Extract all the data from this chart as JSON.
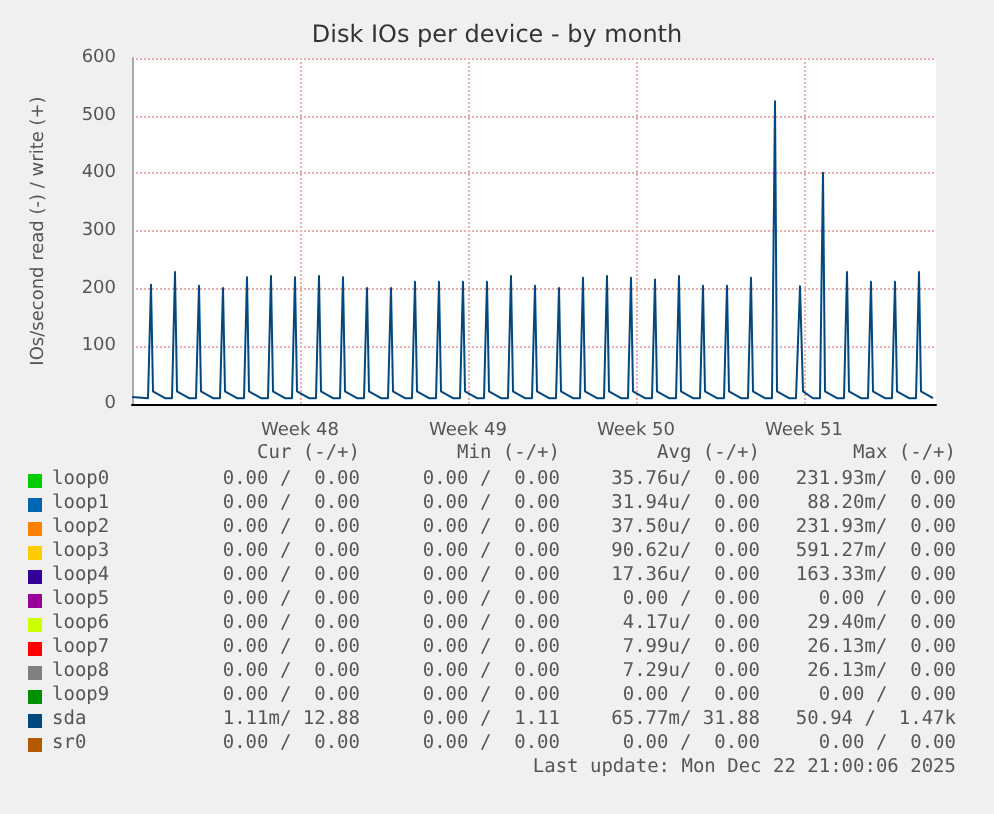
{
  "chart_data": {
    "type": "line",
    "title": "Disk IOs per device - by month",
    "ylabel": "IOs/second read (-) / write (+)",
    "xlim": [
      "2025-11-17T00:00",
      "2025-12-20T12:00"
    ],
    "xticks": [
      {
        "value": "2025-11-24",
        "label": "Week 48"
      },
      {
        "value": "2025-12-01",
        "label": "Week 49"
      },
      {
        "value": "2025-12-08",
        "label": "Week 50"
      },
      {
        "value": "2025-12-15",
        "label": "Week 51"
      }
    ],
    "ylim": [
      0,
      600
    ],
    "yticks": [
      0,
      100,
      200,
      300,
      400,
      500,
      600
    ],
    "grid": true,
    "legend": "bottom",
    "series": [
      {
        "name": "loop0",
        "color": "#00cc00"
      },
      {
        "name": "loop1",
        "color": "#0066b3"
      },
      {
        "name": "loop2",
        "color": "#ff8000"
      },
      {
        "name": "loop3",
        "color": "#ffcc00"
      },
      {
        "name": "loop4",
        "color": "#330099"
      },
      {
        "name": "loop5",
        "color": "#990099"
      },
      {
        "name": "loop6",
        "color": "#ccff00"
      },
      {
        "name": "loop7",
        "color": "#ff0000"
      },
      {
        "name": "loop8",
        "color": "#808080"
      },
      {
        "name": "loop9",
        "color": "#008f00"
      },
      {
        "name": "sda",
        "color": "#00487d",
        "x": [
          "2025-11-17T00:00",
          "2025-11-17T16:00",
          "2025-11-17T19:00",
          "2025-11-17T21:00",
          "2025-11-18T09:00",
          "2025-11-18T16:00",
          "2025-11-18T19:00",
          "2025-11-18T21:00",
          "2025-11-19T09:00",
          "2025-11-19T16:00",
          "2025-11-19T19:00",
          "2025-11-19T21:00",
          "2025-11-20T09:00",
          "2025-11-20T16:00",
          "2025-11-20T19:00",
          "2025-11-20T21:00",
          "2025-11-21T09:00",
          "2025-11-21T16:00",
          "2025-11-21T19:00",
          "2025-11-21T21:00",
          "2025-11-22T09:00",
          "2025-11-22T16:00",
          "2025-11-22T19:00",
          "2025-11-22T21:00",
          "2025-11-23T09:00",
          "2025-11-23T16:00",
          "2025-11-23T19:00",
          "2025-11-23T21:00",
          "2025-11-24T09:00",
          "2025-11-24T16:00",
          "2025-11-24T19:00",
          "2025-11-24T21:00",
          "2025-11-25T09:00",
          "2025-11-25T16:00",
          "2025-11-25T19:00",
          "2025-11-25T21:00",
          "2025-11-26T09:00",
          "2025-11-26T16:00",
          "2025-11-26T19:00",
          "2025-11-26T21:00",
          "2025-11-27T09:00",
          "2025-11-27T16:00",
          "2025-11-27T19:00",
          "2025-11-27T21:00",
          "2025-11-28T09:00",
          "2025-11-28T16:00",
          "2025-11-28T19:00",
          "2025-11-28T21:00",
          "2025-11-29T09:00",
          "2025-11-29T16:00",
          "2025-11-29T19:00",
          "2025-11-29T21:00",
          "2025-11-30T09:00",
          "2025-11-30T16:00",
          "2025-11-30T19:00",
          "2025-11-30T21:00",
          "2025-12-01T09:00",
          "2025-12-01T16:00",
          "2025-12-01T19:00",
          "2025-12-01T21:00",
          "2025-12-02T09:00",
          "2025-12-02T16:00",
          "2025-12-02T19:00",
          "2025-12-02T21:00",
          "2025-12-03T09:00",
          "2025-12-03T16:00",
          "2025-12-03T19:00",
          "2025-12-03T21:00",
          "2025-12-04T09:00",
          "2025-12-04T16:00",
          "2025-12-04T19:00",
          "2025-12-04T21:00",
          "2025-12-05T09:00",
          "2025-12-05T16:00",
          "2025-12-05T19:00",
          "2025-12-05T21:00",
          "2025-12-06T09:00",
          "2025-12-06T16:00",
          "2025-12-06T19:00",
          "2025-12-06T21:00",
          "2025-12-07T09:00",
          "2025-12-07T16:00",
          "2025-12-07T19:00",
          "2025-12-07T21:00",
          "2025-12-08T09:00",
          "2025-12-08T16:00",
          "2025-12-08T19:00",
          "2025-12-08T21:00",
          "2025-12-09T09:00",
          "2025-12-09T16:00",
          "2025-12-09T19:00",
          "2025-12-09T21:00",
          "2025-12-10T09:00",
          "2025-12-10T16:00",
          "2025-12-10T19:00",
          "2025-12-10T21:00",
          "2025-12-11T09:00",
          "2025-12-11T16:00",
          "2025-12-11T19:00",
          "2025-12-11T21:00",
          "2025-12-12T09:00",
          "2025-12-12T16:00",
          "2025-12-12T19:00",
          "2025-12-12T21:00",
          "2025-12-13T09:00",
          "2025-12-13T16:00",
          "2025-12-13T19:00",
          "2025-12-13T21:00",
          "2025-12-14T09:00",
          "2025-12-14T16:00",
          "2025-12-14T20:00",
          "2025-12-14T23:00",
          "2025-12-15T09:00",
          "2025-12-15T16:00",
          "2025-12-15T19:00",
          "2025-12-15T21:00",
          "2025-12-16T09:00",
          "2025-12-16T16:00",
          "2025-12-16T19:00",
          "2025-12-16T21:00",
          "2025-12-17T09:00",
          "2025-12-17T16:00",
          "2025-12-17T19:00",
          "2025-12-17T21:00",
          "2025-12-18T09:00",
          "2025-12-18T16:00",
          "2025-12-18T19:00",
          "2025-12-18T21:00",
          "2025-12-19T09:00",
          "2025-12-19T16:00",
          "2025-12-19T19:00",
          "2025-12-19T21:00",
          "2025-12-20T09:00"
        ],
        "values": [
          12,
          10,
          207,
          22,
          10,
          10,
          229,
          22,
          10,
          10,
          205,
          22,
          10,
          10,
          201,
          22,
          10,
          10,
          220,
          22,
          10,
          10,
          222,
          22,
          10,
          10,
          220,
          22,
          10,
          10,
          222,
          22,
          10,
          10,
          220,
          22,
          10,
          10,
          201,
          22,
          10,
          10,
          201,
          22,
          10,
          10,
          212,
          22,
          10,
          10,
          212,
          22,
          10,
          10,
          212,
          22,
          10,
          10,
          212,
          22,
          10,
          10,
          222,
          22,
          10,
          10,
          205,
          22,
          10,
          10,
          201,
          22,
          10,
          10,
          219,
          22,
          10,
          10,
          222,
          22,
          10,
          10,
          219,
          22,
          10,
          10,
          216,
          22,
          10,
          10,
          222,
          22,
          10,
          10,
          205,
          22,
          10,
          10,
          205,
          22,
          10,
          10,
          219,
          22,
          10,
          10,
          525,
          22,
          10,
          10,
          204,
          22,
          10,
          10,
          401,
          22,
          10,
          10,
          229,
          22,
          10,
          10,
          212,
          22,
          10,
          10,
          212,
          22,
          10,
          10,
          229,
          22,
          10
        ]
      },
      {
        "name": "sr0",
        "color": "#b35a00"
      }
    ],
    "annotations": [
      "Cur (-/+)",
      "Min (-/+)",
      "Avg (-/+)",
      "Max (-/+)",
      "0.00 /  0.00",
      "0.00 /  0.00",
      "35.76u/  0.00",
      "231.93m/  0.00",
      "0.00 /  0.00",
      "0.00 /  0.00",
      "31.94u/  0.00",
      "88.20m/  0.00",
      "0.00 /  0.00",
      "0.00 /  0.00",
      "37.50u/  0.00",
      "231.93m/  0.00",
      "0.00 /  0.00",
      "0.00 /  0.00",
      "90.62u/  0.00",
      "591.27m/  0.00",
      "0.00 /  0.00",
      "0.00 /  0.00",
      "17.36u/  0.00",
      "163.33m/  0.00",
      "0.00 /  0.00",
      "0.00 /  0.00",
      "0.00 /  0.00",
      "0.00 /  0.00",
      "0.00 /  0.00",
      "0.00 /  0.00",
      "4.17u/  0.00",
      "29.40m/  0.00",
      "0.00 /  0.00",
      "0.00 /  0.00",
      "7.99u/  0.00",
      "26.13m/  0.00",
      "0.00 /  0.00",
      "0.00 /  0.00",
      "7.29u/  0.00",
      "26.13m/  0.00",
      "0.00 /  0.00",
      "0.00 /  0.00",
      "0.00 /  0.00",
      "0.00 /  0.00",
      "1.11m/ 12.88",
      "0.00 /  1.11",
      "65.77m/ 31.88",
      "50.94 /  1.47k",
      "0.00 /  0.00",
      "0.00 /  0.00",
      "0.00 /  0.00",
      "0.00 /  0.00",
      "Last update: Mon Dec 22 21:00:06 2025"
    ]
  }
}
